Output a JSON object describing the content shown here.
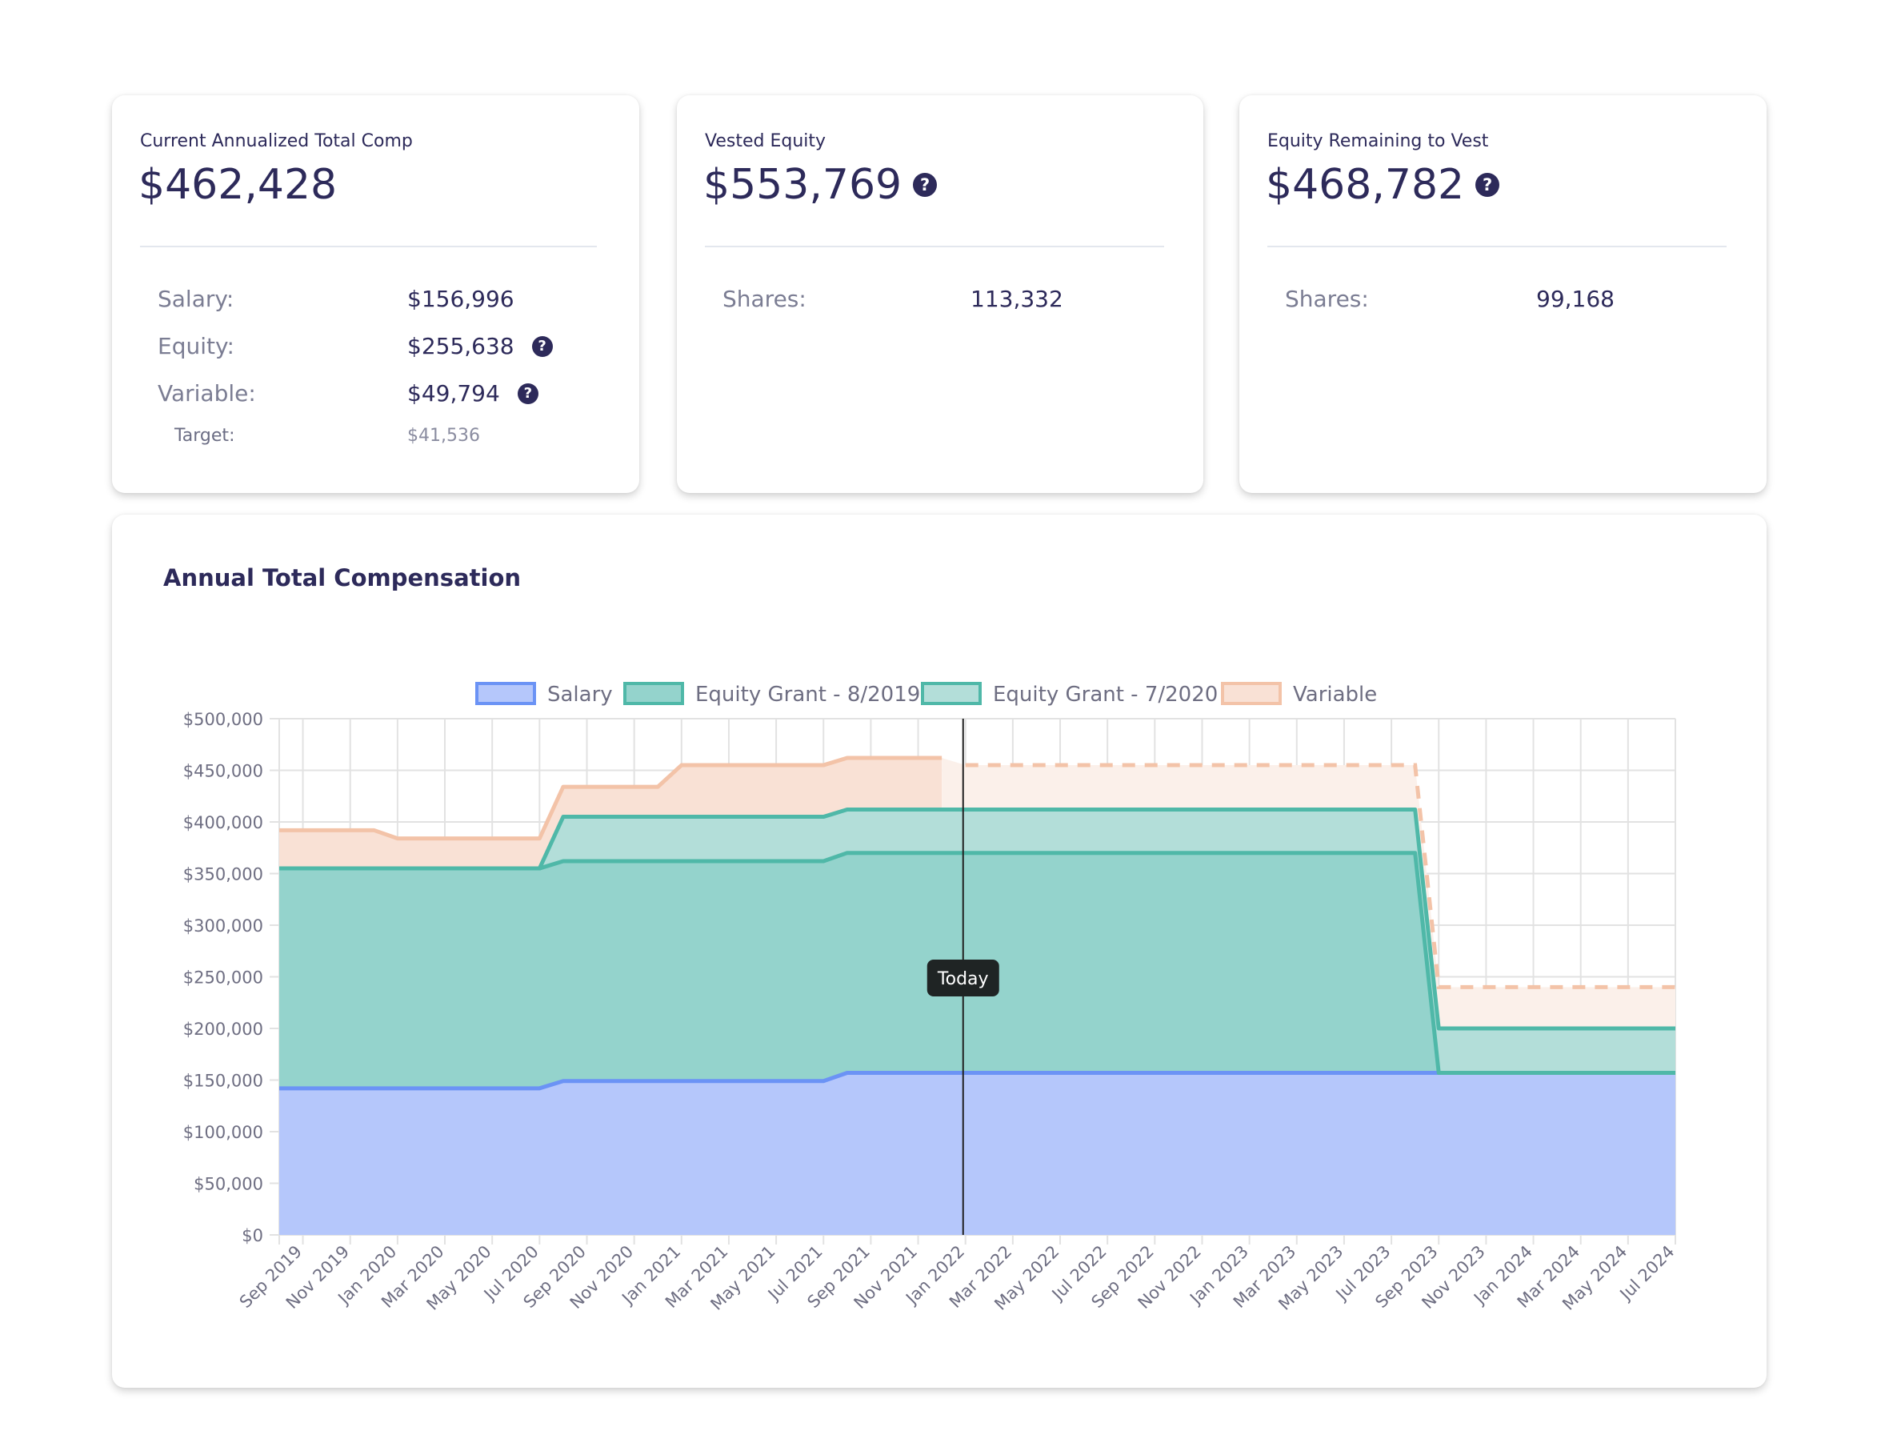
{
  "cards": [
    {
      "title": "Current Annualized Total Comp",
      "value": "$462,428",
      "rows": [
        {
          "label": "Salary:",
          "value": "$156,996"
        },
        {
          "label": "Equity:",
          "value": "$255,638"
        },
        {
          "label": "Variable:",
          "value": "$49,794"
        }
      ],
      "target": {
        "label": "Target:",
        "value": "$41,536"
      }
    },
    {
      "title": "Vested Equity",
      "value": "$553,769",
      "rows": [
        {
          "label": "Shares:",
          "value": "113,332"
        }
      ]
    },
    {
      "title": "Equity Remaining to Vest",
      "value": "$468,782",
      "rows": [
        {
          "label": "Shares:",
          "value": "99,168"
        }
      ]
    }
  ],
  "help_icon": "?",
  "chart_data": {
    "type": "area",
    "stacked": true,
    "title": "Annual Total Compensation",
    "xlabel": "",
    "ylabel": "",
    "ylim": [
      0,
      500000
    ],
    "yticks": [
      "$0",
      "$50,000",
      "$100,000",
      "$150,000",
      "$200,000",
      "$250,000",
      "$300,000",
      "$350,000",
      "$400,000",
      "$450,000",
      "$500,000"
    ],
    "x_start": "Aug 2019",
    "x_step": "1 month",
    "tick_labels": [
      "Sep 2019",
      "Nov 2019",
      "Jan 2020",
      "Mar 2020",
      "May 2020",
      "Jul 2020",
      "Sep 2020",
      "Nov 2020",
      "Jan 2021",
      "Mar 2021",
      "May 2021",
      "Jul 2021",
      "Sep 2021",
      "Nov 2021",
      "Jan 2022",
      "Mar 2022",
      "May 2022",
      "Jul 2022",
      "Sep 2022",
      "Nov 2022",
      "Jan 2023",
      "Mar 2023",
      "May 2023",
      "Jul 2023",
      "Sep 2023",
      "Nov 2023",
      "Jan 2024",
      "Mar 2024",
      "May 2024",
      "Jul 2024"
    ],
    "grid": true,
    "legend_position": "top",
    "today_label": "Today",
    "today_index": 28.9,
    "projected_from_index": 28,
    "series": [
      {
        "name": "Salary",
        "fill": "#b5c7fb",
        "stroke": "#6b93f5",
        "values": [
          142000,
          142000,
          142000,
          142000,
          142000,
          142000,
          142000,
          142000,
          142000,
          142000,
          142000,
          142000,
          149000,
          149000,
          149000,
          149000,
          149000,
          149000,
          149000,
          149000,
          149000,
          149000,
          149000,
          149000,
          157000,
          157000,
          157000,
          157000,
          157000,
          157000,
          157000,
          157000,
          157000,
          157000,
          157000,
          157000,
          157000,
          157000,
          157000,
          157000,
          157000,
          157000,
          157000,
          157000,
          157000,
          157000,
          157000,
          157000,
          157000,
          157000,
          157000,
          157000,
          157000,
          157000,
          157000,
          157000,
          157000,
          157000,
          157000,
          157000
        ]
      },
      {
        "name": "Equity Grant - 8/2019",
        "fill": "#94d3cc",
        "stroke": "#4fb8a8",
        "values": [
          213000,
          213000,
          213000,
          213000,
          213000,
          213000,
          213000,
          213000,
          213000,
          213000,
          213000,
          213000,
          213000,
          213000,
          213000,
          213000,
          213000,
          213000,
          213000,
          213000,
          213000,
          213000,
          213000,
          213000,
          213000,
          213000,
          213000,
          213000,
          213000,
          213000,
          213000,
          213000,
          213000,
          213000,
          213000,
          213000,
          213000,
          213000,
          213000,
          213000,
          213000,
          213000,
          213000,
          213000,
          213000,
          213000,
          213000,
          213000,
          213000,
          0,
          0,
          0,
          0,
          0,
          0,
          0,
          0,
          0,
          0,
          0
        ]
      },
      {
        "name": "Equity Grant - 7/2020",
        "fill": "#b3ded9",
        "stroke": "#4fb8a8",
        "values": [
          0,
          0,
          0,
          0,
          0,
          0,
          0,
          0,
          0,
          0,
          0,
          0,
          43000,
          43000,
          43000,
          43000,
          43000,
          43000,
          43000,
          43000,
          43000,
          43000,
          43000,
          43000,
          42000,
          42000,
          42000,
          42000,
          42000,
          42000,
          42000,
          42000,
          42000,
          42000,
          42000,
          42000,
          42000,
          42000,
          42000,
          42000,
          42000,
          42000,
          42000,
          42000,
          42000,
          42000,
          42000,
          42000,
          42000,
          43000,
          43000,
          43000,
          43000,
          43000,
          43000,
          43000,
          43000,
          43000,
          43000,
          43000
        ]
      },
      {
        "name": "Variable",
        "fill": "#f9e1d5",
        "stroke": "#f3c3a8",
        "projected_fill": "#fbf0ea",
        "values": [
          37000,
          37000,
          37000,
          37000,
          37000,
          29000,
          29000,
          29000,
          29000,
          29000,
          29000,
          29000,
          29000,
          29000,
          29000,
          29000,
          29000,
          50000,
          50000,
          50000,
          50000,
          50000,
          50000,
          50000,
          50000,
          50000,
          50000,
          50000,
          50000,
          43000,
          43000,
          43000,
          43000,
          43000,
          43000,
          43000,
          43000,
          43000,
          43000,
          43000,
          43000,
          43000,
          43000,
          43000,
          43000,
          43000,
          43000,
          43000,
          43000,
          40000,
          40000,
          40000,
          40000,
          40000,
          40000,
          40000,
          40000,
          40000,
          40000,
          40000
        ]
      }
    ]
  }
}
